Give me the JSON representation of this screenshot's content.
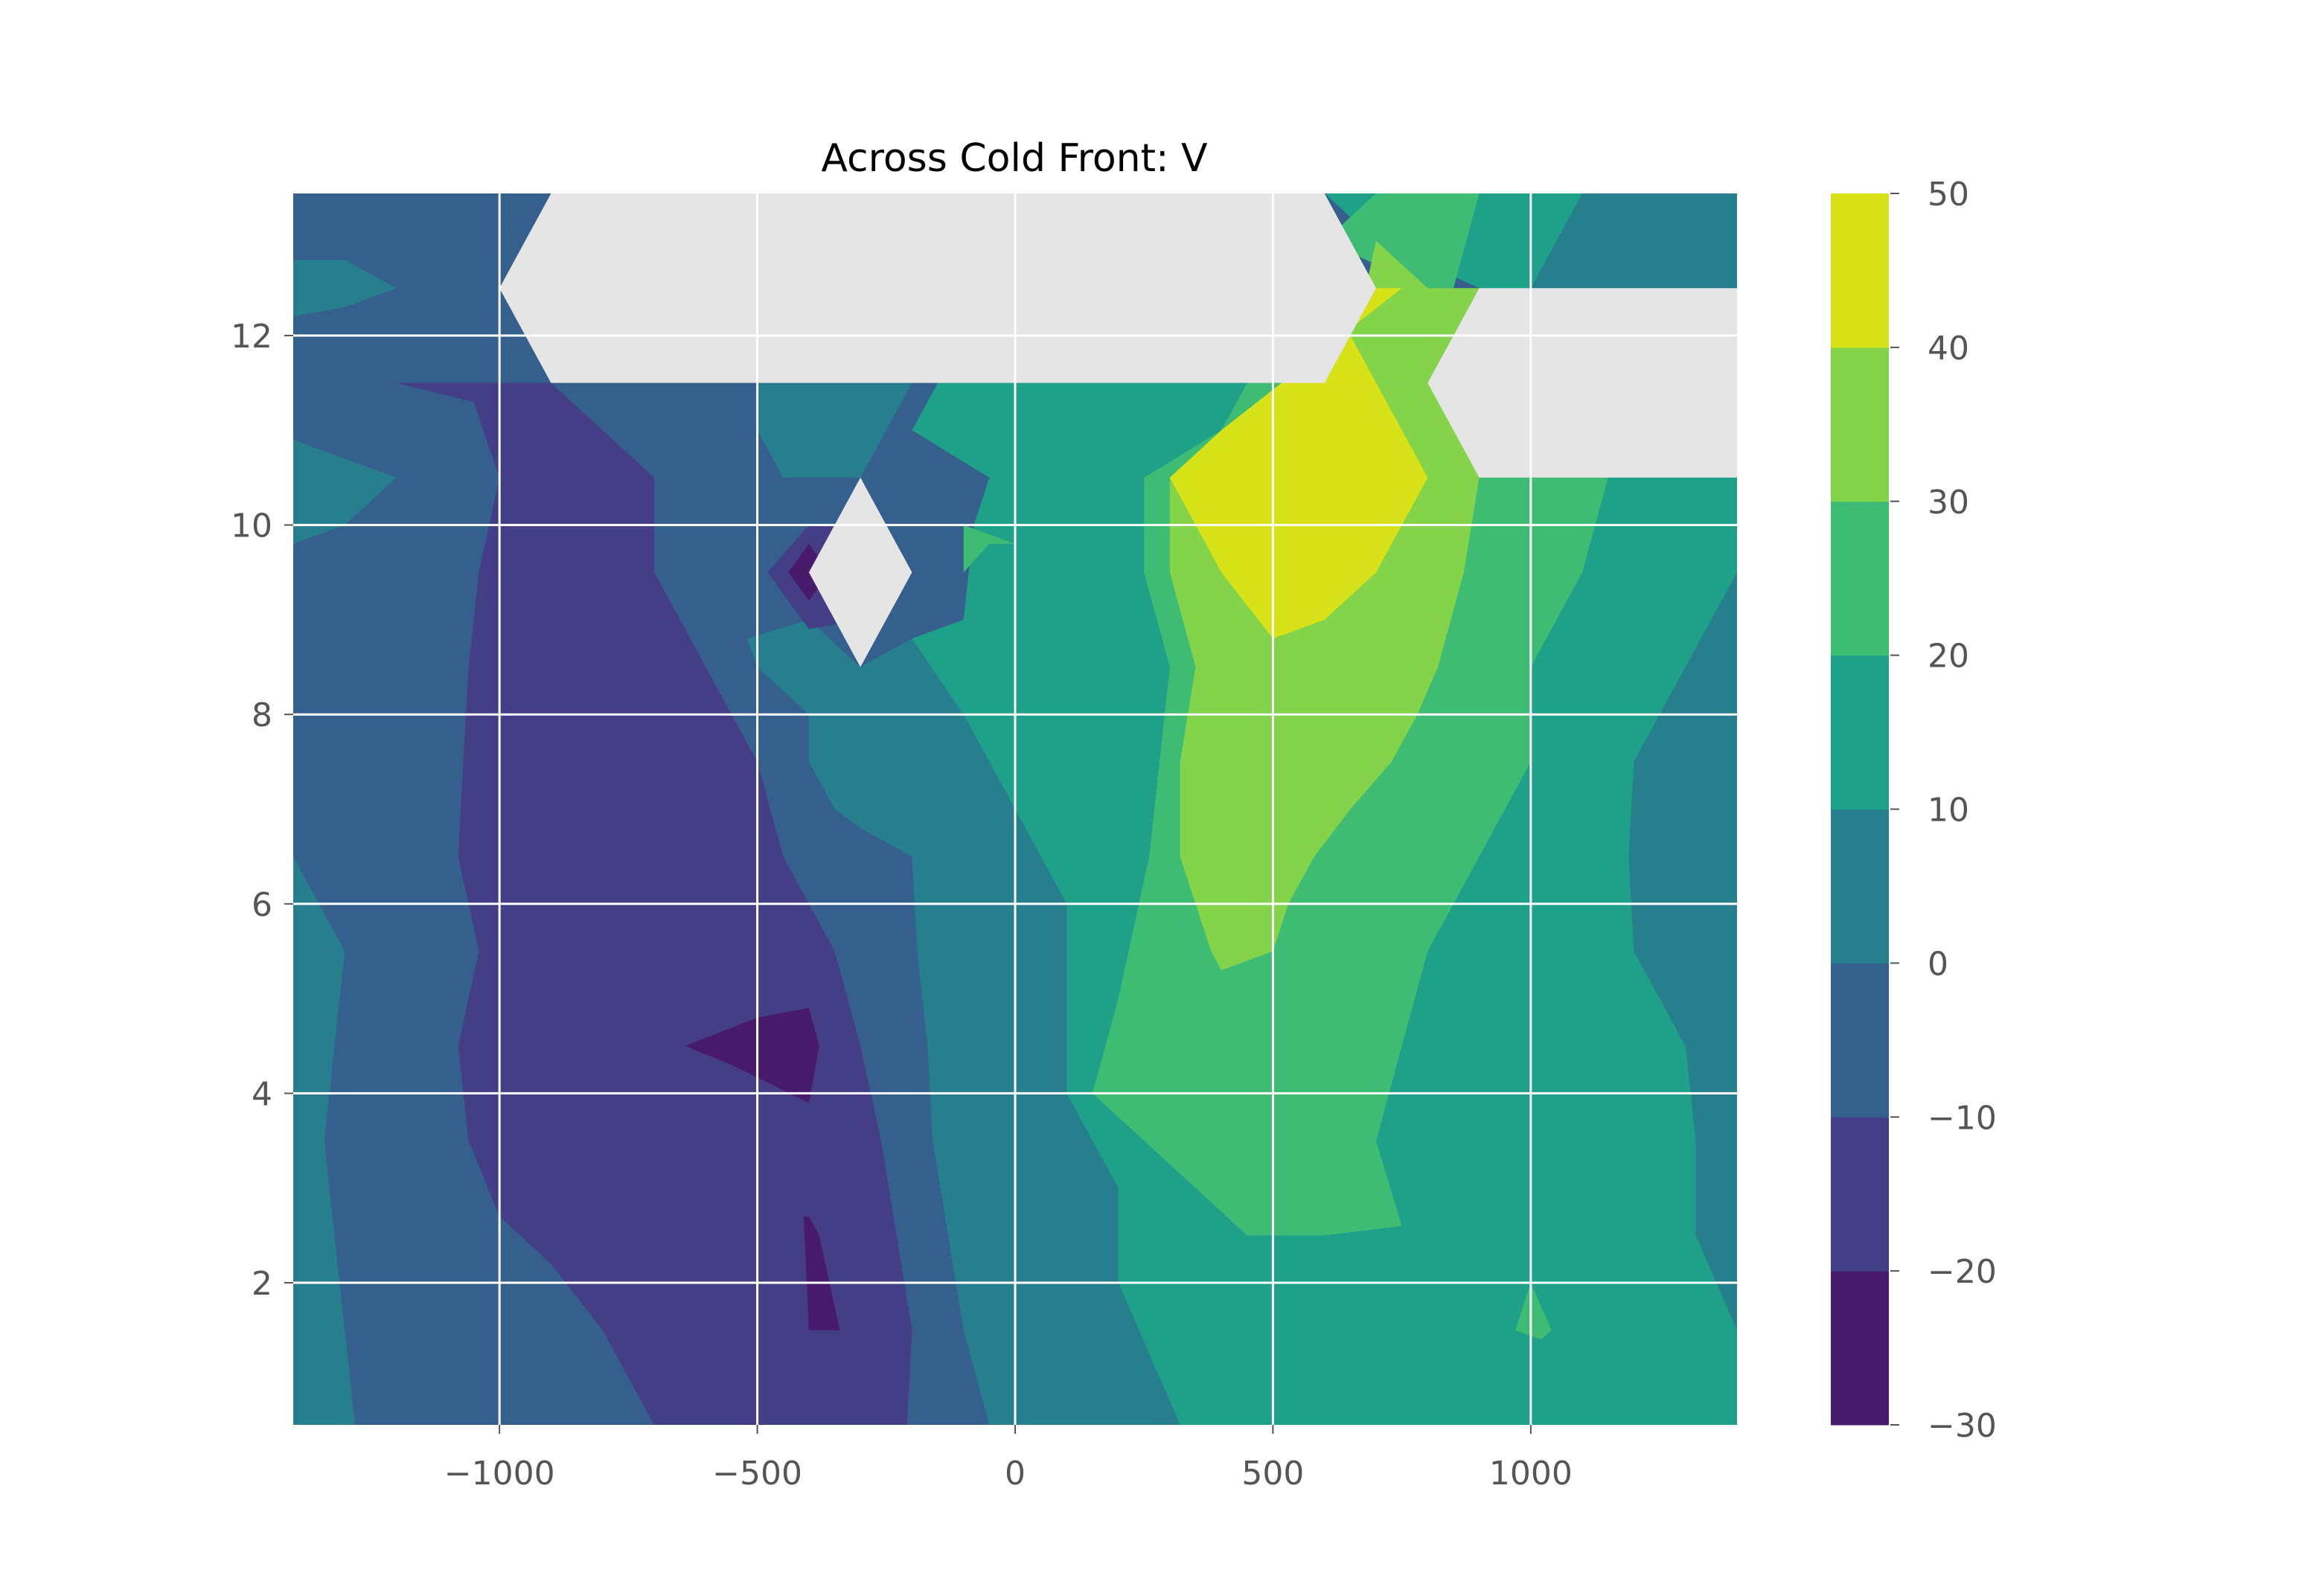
{
  "chart_data": {
    "type": "contourf",
    "title": "Across Cold Front: V",
    "xlabel": "",
    "ylabel": "",
    "xlim": [
      -1400,
      1400
    ],
    "ylim": [
      0.5,
      13.5
    ],
    "x_ticks": [
      -1000,
      -500,
      0,
      500,
      1000
    ],
    "x_tick_labels": [
      "−1000",
      "−500",
      "0",
      "500",
      "1000"
    ],
    "y_ticks": [
      2,
      4,
      6,
      8,
      10,
      12
    ],
    "y_tick_labels": [
      "2",
      "4",
      "6",
      "8",
      "10",
      "12"
    ],
    "grid": true,
    "levels": [
      -30,
      -20,
      -10,
      0,
      10,
      20,
      30,
      40,
      50
    ],
    "level_labels": [
      "−30",
      "−20",
      "−10",
      "0",
      "10",
      "20",
      "30",
      "40",
      "50"
    ],
    "colors": [
      "#481a6c",
      "#433e85",
      "#355f8d",
      "#277f8e",
      "#1fa088",
      "#3fbc73",
      "#84d44b",
      "#d8e219"
    ],
    "missing_color": "#e5e5e5",
    "colorbar": {
      "position": "right"
    },
    "regions": [
      {
        "level": 2,
        "points": [
          [
            -1400,
            0.5
          ],
          [
            1400,
            0.5
          ],
          [
            1400,
            13.5
          ],
          [
            -1400,
            13.5
          ]
        ]
      },
      {
        "level": 3,
        "points": [
          [
            -1400,
            0.5
          ],
          [
            -1280,
            0.5
          ],
          [
            -1300,
            1.5
          ],
          [
            -1320,
            2.5
          ],
          [
            -1340,
            3.5
          ],
          [
            -1320,
            4.5
          ],
          [
            -1300,
            5.5
          ],
          [
            -1400,
            6.5
          ]
        ]
      },
      {
        "level": 3,
        "points": [
          [
            -1400,
            9.8
          ],
          [
            -1300,
            10
          ],
          [
            -1200,
            10.5
          ],
          [
            -1400,
            10.9
          ]
        ]
      },
      {
        "level": 3,
        "points": [
          [
            -1400,
            12.2
          ],
          [
            -1300,
            12.3
          ],
          [
            -1200,
            12.5
          ],
          [
            -1300,
            12.8
          ],
          [
            -1400,
            12.8
          ]
        ]
      },
      {
        "level": 3,
        "points": [
          [
            -50,
            0.5
          ],
          [
            -100,
            1.5
          ],
          [
            -130,
            2.5
          ],
          [
            -160,
            3.5
          ],
          [
            -170,
            4.5
          ],
          [
            -190,
            5.5
          ],
          [
            -200,
            6.5
          ],
          [
            -300,
            6.8
          ],
          [
            -350,
            7
          ],
          [
            -400,
            7.5
          ],
          [
            -400,
            8
          ],
          [
            -500,
            8.5
          ],
          [
            -520,
            8.8
          ],
          [
            -400,
            9
          ],
          [
            -300,
            8.5
          ],
          [
            -200,
            8.8
          ],
          [
            -100,
            8
          ],
          [
            0,
            7
          ],
          [
            100,
            6
          ],
          [
            100,
            4
          ],
          [
            200,
            3
          ],
          [
            200,
            2
          ],
          [
            320,
            0.5
          ]
        ]
      },
      {
        "level": 3,
        "points": [
          [
            -500,
            11.5
          ],
          [
            -500,
            11
          ],
          [
            -450,
            10.5
          ],
          [
            -300,
            10.5
          ],
          [
            -250,
            11
          ],
          [
            -200,
            11.5
          ]
        ]
      },
      {
        "level": 3,
        "points": [
          [
            1000,
            12.5
          ],
          [
            1400,
            12.5
          ],
          [
            1400,
            13.5
          ],
          [
            1100,
            13.5
          ]
        ]
      },
      {
        "level": 3,
        "points": [
          [
            1400,
            0.5
          ],
          [
            1400,
            1.5
          ],
          [
            1320,
            2.5
          ],
          [
            1320,
            3.5
          ],
          [
            1300,
            4.5
          ],
          [
            1200,
            5.5
          ],
          [
            1190,
            6.5
          ],
          [
            1200,
            7.5
          ],
          [
            1300,
            8.5
          ],
          [
            1400,
            9.5
          ]
        ]
      },
      {
        "level": 4,
        "points": [
          [
            320,
            0.5
          ],
          [
            200,
            2
          ],
          [
            200,
            3
          ],
          [
            100,
            4
          ],
          [
            100,
            6
          ],
          [
            0,
            7
          ],
          [
            -100,
            8
          ],
          [
            -200,
            8.8
          ],
          [
            -100,
            9
          ],
          [
            -80,
            10
          ],
          [
            -50,
            10.5
          ],
          [
            -200,
            11
          ],
          [
            -150,
            11.5
          ],
          [
            1400,
            11.5
          ],
          [
            1400,
            9.5
          ],
          [
            1300,
            8.5
          ],
          [
            1200,
            7.5
          ],
          [
            1190,
            6.5
          ],
          [
            1200,
            5.5
          ],
          [
            1300,
            4.5
          ],
          [
            1320,
            3.5
          ],
          [
            1320,
            2.5
          ],
          [
            1400,
            1.5
          ],
          [
            1400,
            0.5
          ]
        ]
      },
      {
        "level": 4,
        "points": [
          [
            600,
            13.5
          ],
          [
            700,
            13
          ],
          [
            900,
            12.5
          ],
          [
            1000,
            12.5
          ],
          [
            1100,
            13.5
          ]
        ]
      },
      {
        "level": 5,
        "points": [
          [
            450,
            11.5
          ],
          [
            400,
            11
          ],
          [
            250,
            10.5
          ],
          [
            250,
            9.5
          ],
          [
            300,
            8.5
          ],
          [
            280,
            7.5
          ],
          [
            260,
            6.5
          ],
          [
            200,
            5
          ],
          [
            150,
            4
          ],
          [
            350,
            3
          ],
          [
            450,
            2.5
          ],
          [
            600,
            2.5
          ],
          [
            750,
            2.6
          ],
          [
            700,
            3.5
          ],
          [
            750,
            4.5
          ],
          [
            800,
            5.5
          ],
          [
            900,
            6.5
          ],
          [
            1000,
            7.5
          ],
          [
            1000,
            8.5
          ],
          [
            1100,
            9.5
          ],
          [
            1150,
            10.5
          ],
          [
            1100,
            11.5
          ]
        ]
      },
      {
        "level": 5,
        "points": [
          [
            -100,
            9.5
          ],
          [
            -50,
            9.8
          ],
          [
            0,
            9.8
          ],
          [
            -100,
            10
          ]
        ]
      },
      {
        "level": 5,
        "points": [
          [
            600,
            13
          ],
          [
            700,
            13.5
          ],
          [
            900,
            13.5
          ],
          [
            850,
            12.5
          ],
          [
            800,
            12.5
          ]
        ]
      },
      {
        "level": 5,
        "points": [
          [
            1000,
            2
          ],
          [
            1040,
            1.5
          ],
          [
            1020,
            1.4
          ],
          [
            970,
            1.5
          ]
        ]
      },
      {
        "level": 6,
        "points": [
          [
            560,
            11.5
          ],
          [
            400,
            11
          ],
          [
            300,
            10.5
          ],
          [
            300,
            9.5
          ],
          [
            350,
            8.5
          ],
          [
            320,
            7.5
          ],
          [
            320,
            6.5
          ],
          [
            380,
            5.5
          ],
          [
            400,
            5.3
          ],
          [
            500,
            5.5
          ],
          [
            530,
            6
          ],
          [
            580,
            6.5
          ],
          [
            650,
            7
          ],
          [
            730,
            7.5
          ],
          [
            780,
            8
          ],
          [
            820,
            8.5
          ],
          [
            870,
            9.5
          ],
          [
            900,
            10.5
          ],
          [
            840,
            11.5
          ]
        ]
      },
      {
        "level": 6,
        "points": [
          [
            680,
            12.5
          ],
          [
            700,
            13
          ],
          [
            800,
            12.5
          ],
          [
            900,
            12.5
          ],
          [
            800,
            11.5
          ],
          [
            600,
            11.5
          ]
        ]
      },
      {
        "level": 7,
        "points": [
          [
            400,
            11
          ],
          [
            300,
            10.5
          ],
          [
            400,
            9.5
          ],
          [
            500,
            8.8
          ],
          [
            600,
            9
          ],
          [
            700,
            9.5
          ],
          [
            800,
            10.5
          ],
          [
            700,
            11.5
          ],
          [
            650,
            12
          ],
          [
            700,
            12.5
          ],
          [
            750,
            12.5
          ]
        ]
      },
      {
        "level": 1,
        "points": [
          [
            -1200,
            11.5
          ],
          [
            -1000,
            11.5
          ],
          [
            -900,
            11.5
          ],
          [
            -800,
            11
          ],
          [
            -700,
            10.5
          ],
          [
            -700,
            10
          ],
          [
            -700,
            9.5
          ],
          [
            -650,
            9
          ],
          [
            -600,
            8.5
          ],
          [
            -550,
            8
          ],
          [
            -500,
            7.5
          ],
          [
            -450,
            6.5
          ],
          [
            -400,
            6
          ],
          [
            -350,
            5.5
          ],
          [
            -300,
            4.5
          ],
          [
            -260,
            3.5
          ],
          [
            -230,
            2.5
          ],
          [
            -200,
            1.5
          ],
          [
            -210,
            0.5
          ],
          [
            -700,
            0.5
          ],
          [
            -800,
            1.5
          ],
          [
            -900,
            2.2
          ],
          [
            -1000,
            2.7
          ],
          [
            -1060,
            3.5
          ],
          [
            -1080,
            4.5
          ],
          [
            -1040,
            5.5
          ],
          [
            -1080,
            6.5
          ],
          [
            -1070,
            7.5
          ],
          [
            -1060,
            8.5
          ],
          [
            -1040,
            9.5
          ],
          [
            -1000,
            10.5
          ],
          [
            -1050,
            11.3
          ]
        ]
      },
      {
        "level": 1,
        "points": [
          [
            -480,
            9.5
          ],
          [
            -400,
            10
          ],
          [
            -300,
            10
          ],
          [
            -200,
            9.5
          ],
          [
            -300,
            9
          ],
          [
            -400,
            8.9
          ]
        ]
      },
      {
        "level": 0,
        "points": [
          [
            -640,
            4.5
          ],
          [
            -500,
            4.8
          ],
          [
            -400,
            4.9
          ],
          [
            -380,
            4.5
          ],
          [
            -400,
            3.9
          ],
          [
            -550,
            4.3
          ]
        ]
      },
      {
        "level": 0,
        "points": [
          [
            -410,
            2.7
          ],
          [
            -400,
            1.5
          ],
          [
            -340,
            1.5
          ],
          [
            -380,
            2.5
          ],
          [
            -400,
            2.7
          ]
        ]
      },
      {
        "level": 0,
        "points": [
          [
            -440,
            9.5
          ],
          [
            -400,
            9.8
          ],
          [
            -360,
            9.5
          ],
          [
            -400,
            9.2
          ]
        ]
      }
    ],
    "missing_regions": [
      {
        "points": [
          [
            -900,
            11.5
          ],
          [
            -1000,
            12.5
          ],
          [
            -900,
            13.5
          ],
          [
            600,
            13.5
          ],
          [
            700,
            12.5
          ],
          [
            600,
            11.5
          ]
        ]
      },
      {
        "points": [
          [
            -400,
            9.5
          ],
          [
            -300,
            8.5
          ],
          [
            -200,
            9.5
          ],
          [
            -300,
            10.5
          ]
        ]
      },
      {
        "points": [
          [
            900,
            12.5
          ],
          [
            1400,
            12.5
          ],
          [
            1400,
            10.5
          ],
          [
            900,
            10.5
          ],
          [
            800,
            11.5
          ]
        ]
      }
    ]
  }
}
